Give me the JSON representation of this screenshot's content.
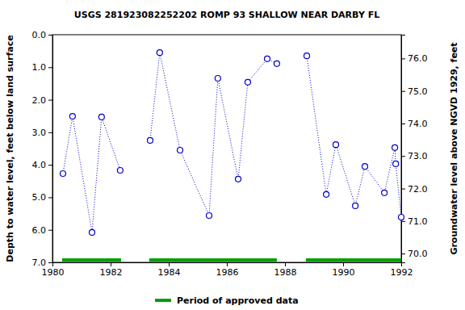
{
  "chart_data": {
    "type": "line",
    "title": "USGS 281923082252202 ROMP 93 SHALLOW NEAR DARBY FL",
    "y_label": "Depth to water level, feet below land surface",
    "y2_label": "Groundwater level above NGVD 1929, feet",
    "x": [
      1980.36,
      1980.69,
      1981.36,
      1981.69,
      1982.33,
      null,
      1983.36,
      1983.69,
      1984.39,
      1985.39,
      1985.69,
      1986.39,
      1986.72,
      1987.39,
      1987.72,
      null,
      1988.75,
      1989.42,
      1989.75,
      1990.42,
      1990.75,
      1991.42,
      1991.78,
      1991.81,
      1992.0
    ],
    "series": [
      {
        "name": "Depth to water level",
        "color": "#0000cc",
        "marker": "open-circle",
        "line_style": "dotted",
        "values": [
          4.27,
          2.51,
          6.08,
          2.53,
          4.17,
          null,
          3.25,
          0.55,
          3.55,
          5.56,
          1.34,
          4.44,
          1.46,
          0.74,
          0.89,
          null,
          0.65,
          4.91,
          3.38,
          5.26,
          4.05,
          4.86,
          3.47,
          3.97,
          5.61
        ]
      }
    ],
    "xlim": [
      1980,
      1992
    ],
    "xticks": [
      1980,
      1982,
      1984,
      1986,
      1988,
      1990,
      1992
    ],
    "ylim": [
      7,
      0
    ],
    "yticks": [
      {
        "value": 0,
        "label": "0.0"
      },
      {
        "value": 1,
        "label": "1.0"
      },
      {
        "value": 2,
        "label": "2.0"
      },
      {
        "value": 3,
        "label": "3.0"
      },
      {
        "value": 4,
        "label": "4.0"
      },
      {
        "value": 5,
        "label": "5.0"
      },
      {
        "value": 6,
        "label": "6.0"
      },
      {
        "value": 7,
        "label": "7.0"
      }
    ],
    "y2lim": [
      69.73,
      76.73
    ],
    "y2ticks": [
      {
        "value": 70,
        "label": "70.0"
      },
      {
        "value": 71,
        "label": "71.0"
      },
      {
        "value": 72,
        "label": "72.0"
      },
      {
        "value": 73,
        "label": "73.0"
      },
      {
        "value": 74,
        "label": "74.0"
      },
      {
        "value": 75,
        "label": "75.0"
      },
      {
        "value": 76,
        "label": "76.0"
      }
    ],
    "periods": [
      [
        1980.33,
        1982.36
      ],
      [
        1983.33,
        1987.72
      ],
      [
        1988.72,
        1992.0
      ]
    ],
    "periods_label": "Period of approved data",
    "periods_color": "#00a000",
    "grid": false
  }
}
